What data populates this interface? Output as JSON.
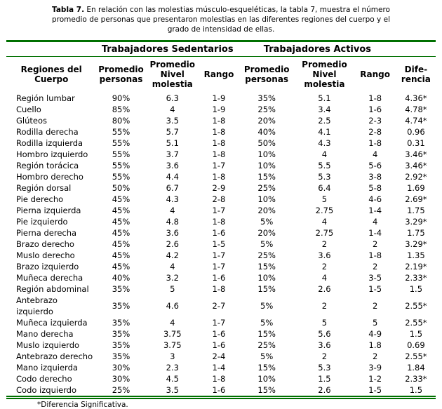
{
  "caption": {
    "label": "Tabla 7.",
    "text": "En relación con las molestias músculo-esqueléticas, la tabla 7, muestra el número promedio de personas que presentaron molestias en las diferentes regiones del cuerpo y el grado de intensidad de ellas."
  },
  "table": {
    "group_headers": {
      "sedentarios": "Trabajadores Sedentarios",
      "activos": "Trabajadores Activos"
    },
    "columns": [
      "Regiones del Cuerpo",
      "Promedio personas",
      "Promedio Nivel molestia",
      "Rango",
      "Promedio personas",
      "Promedio Nivel molestia",
      "Rango",
      "Dife-rencia"
    ],
    "rows": [
      [
        "Región lumbar",
        "90%",
        "6.3",
        "1-9",
        "35%",
        "5.1",
        "1-8",
        "4.36*"
      ],
      [
        "Cuello",
        "85%",
        "4",
        "1-9",
        "25%",
        "3.4",
        "1-6",
        "4.78*"
      ],
      [
        "Glúteos",
        "80%",
        "3.5",
        "1-8",
        "20%",
        "2.5",
        "2-3",
        "4.74*"
      ],
      [
        "Rodilla derecha",
        "55%",
        "5.7",
        "1-8",
        "40%",
        "4.1",
        "2-8",
        "0.96"
      ],
      [
        "Rodilla izquierda",
        "55%",
        "5.1",
        "1-8",
        "50%",
        "4.3",
        "1-8",
        "0.31"
      ],
      [
        "Hombro izquierdo",
        "55%",
        "3.7",
        "1-8",
        "10%",
        "4",
        "4",
        "3.46*"
      ],
      [
        "Región torácica",
        "55%",
        "3.6",
        "1-7",
        "10%",
        "5.5",
        "5-6",
        "3.46*"
      ],
      [
        "Hombro derecho",
        "55%",
        "4.4",
        "1-8",
        "15%",
        "5.3",
        "3-8",
        "2.92*"
      ],
      [
        "Región dorsal",
        "50%",
        "6.7",
        "2-9",
        "25%",
        "6.4",
        "5-8",
        "1.69"
      ],
      [
        "Pie derecho",
        "45%",
        "4.3",
        "2-8",
        "10%",
        "5",
        "4-6",
        "2.69*"
      ],
      [
        "Pierna izquierda",
        "45%",
        "4",
        "1-7",
        "20%",
        "2.75",
        "1-4",
        "1.75"
      ],
      [
        "Pie izquierdo",
        "45%",
        "4.8",
        "1-8",
        "5%",
        "4",
        "4",
        "3.29*"
      ],
      [
        "Pierna derecha",
        "45%",
        "3.6",
        "1-6",
        "20%",
        "2.75",
        "1-4",
        "1.75"
      ],
      [
        "Brazo derecho",
        "45%",
        "2.6",
        "1-5",
        "5%",
        "2",
        "2",
        "3.29*"
      ],
      [
        "Muslo derecho",
        "45%",
        "4.2",
        "1-7",
        "25%",
        "3.6",
        "1-8",
        "1.35"
      ],
      [
        "Brazo izquierdo",
        "45%",
        "4",
        "1-7",
        "15%",
        "2",
        "2",
        "2.19*"
      ],
      [
        "Muñeca derecha",
        "40%",
        "3.2",
        "1-6",
        "10%",
        "4",
        "3-5",
        "2.33*"
      ],
      [
        "Región abdominal",
        "35%",
        "5",
        "1-8",
        "15%",
        "2.6",
        "1-5",
        "1.5"
      ],
      [
        "Antebrazo\nizquierdo",
        "35%",
        "4.6",
        "2-7",
        "5%",
        "2",
        "2",
        "2.55*"
      ],
      [
        "Muñeca izquierda",
        "35%",
        "4",
        "1-7",
        "5%",
        "5",
        "5",
        "2.55*"
      ],
      [
        "Mano derecha",
        "35%",
        "3.75",
        "1-6",
        "15%",
        "5.6",
        "4-9",
        "1.5"
      ],
      [
        "Muslo izquierdo",
        "35%",
        "3.75",
        "1-6",
        "25%",
        "3.6",
        "1.8",
        "0.69"
      ],
      [
        "Antebrazo derecho",
        "35%",
        "3",
        "2-4",
        "5%",
        "2",
        "2",
        "2.55*"
      ],
      [
        "Mano izquierda",
        "30%",
        "2.3",
        "1-4",
        "15%",
        "5.3",
        "3-9",
        "1.84"
      ],
      [
        "Codo derecho",
        "30%",
        "4.5",
        "1-8",
        "10%",
        "1.5",
        "1-2",
        "2.33*"
      ],
      [
        "Codo izquierdo",
        "25%",
        "3.5",
        "1-6",
        "15%",
        "2.6",
        "1-5",
        "1.5"
      ]
    ],
    "footnote": "*Diferencia Significativa."
  },
  "colors": {
    "rule_green": "#007000",
    "text": "#000000"
  }
}
